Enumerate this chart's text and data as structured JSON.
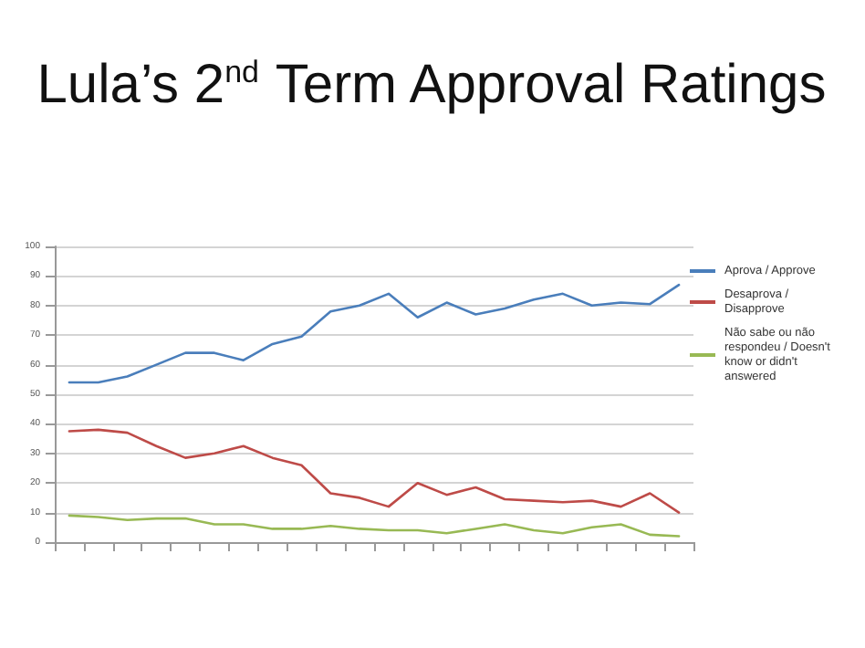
{
  "chart_data": {
    "type": "line",
    "title": "Lula’s 2$^{nd}$ Term Approval Ratings",
    "categories": [
      null,
      null,
      null,
      null,
      null,
      null,
      null,
      null,
      null,
      null,
      null,
      null,
      null,
      null,
      null,
      null,
      null,
      null,
      null,
      null,
      null,
      null
    ],
    "series": [
      {
        "name": "Aprova / Approve",
        "color": "#4a7ebb",
        "values": [
          54,
          54,
          56,
          60,
          64,
          64,
          61.5,
          67,
          69.5,
          78,
          80,
          84,
          76,
          81,
          77,
          79,
          82,
          84,
          80,
          81,
          80.5,
          87
        ]
      },
      {
        "name": "Desaprova / Disapprove",
        "color": "#be4b48",
        "values": [
          37.5,
          38,
          37,
          32.5,
          28.5,
          30,
          32.5,
          28.5,
          26,
          16.5,
          15,
          12,
          20,
          16,
          18.5,
          14.5,
          14,
          13.5,
          14,
          12,
          16.5,
          10
        ]
      },
      {
        "name": "Não sabe ou não respondeu / Doesn't know or didn't answered",
        "color": "#98b954",
        "values": [
          9,
          8.5,
          7.5,
          8,
          8,
          6,
          6,
          4.5,
          4.5,
          5.5,
          4.5,
          4,
          4,
          3,
          4.5,
          6,
          4,
          3,
          5,
          6,
          2.5,
          2
        ]
      }
    ],
    "ylim": [
      0,
      100
    ],
    "yticks": [
      0,
      10,
      20,
      30,
      40,
      50,
      60,
      70,
      80,
      90,
      100
    ],
    "grid": "y",
    "legend": "right",
    "marker": "none",
    "line_style": "solid"
  }
}
